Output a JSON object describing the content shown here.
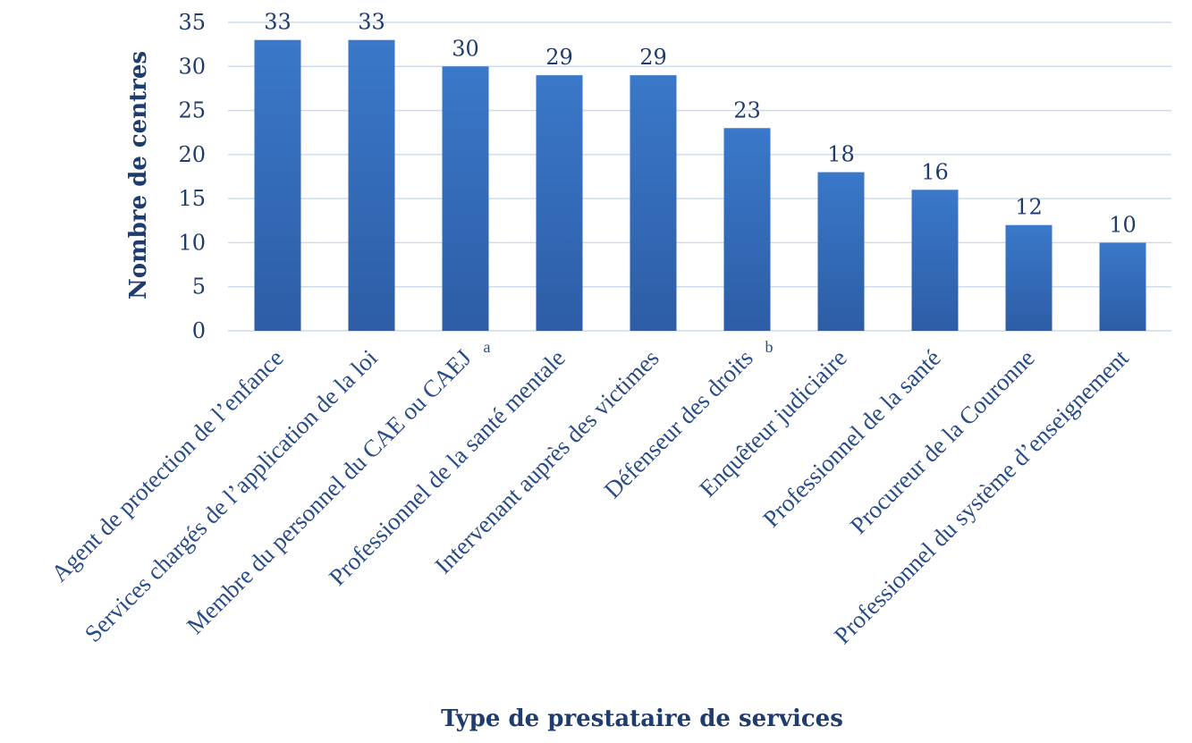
{
  "chart_data": {
    "type": "bar",
    "title": "",
    "xlabel": "Type de prestataire de services",
    "ylabel": "Nombre de centres",
    "ylim": [
      0,
      35
    ],
    "yticks": [
      0,
      5,
      10,
      15,
      20,
      25,
      30,
      35
    ],
    "grid": true,
    "legend": "none",
    "bar_color": "#3a78c9",
    "bar_color_dark": "#2d5da6",
    "categories": [
      "Agent de protection de l’enfance",
      "Services chargés de l’application de la loi",
      "Membre du personnel du CAE ou CAEJ",
      "Professionnel de la santé mentale",
      "Intervenant auprès des victimes",
      "Défenseur des droits",
      "Enquêteur judiciaire",
      "Professionnel de la santé",
      "Procureur de la Couronne",
      "Professionnel du système d’enseignement"
    ],
    "category_superscripts": [
      "",
      "",
      "a",
      "",
      "",
      "b",
      "",
      "",
      "",
      ""
    ],
    "values": [
      33,
      33,
      30,
      29,
      29,
      23,
      18,
      16,
      12,
      10
    ]
  }
}
